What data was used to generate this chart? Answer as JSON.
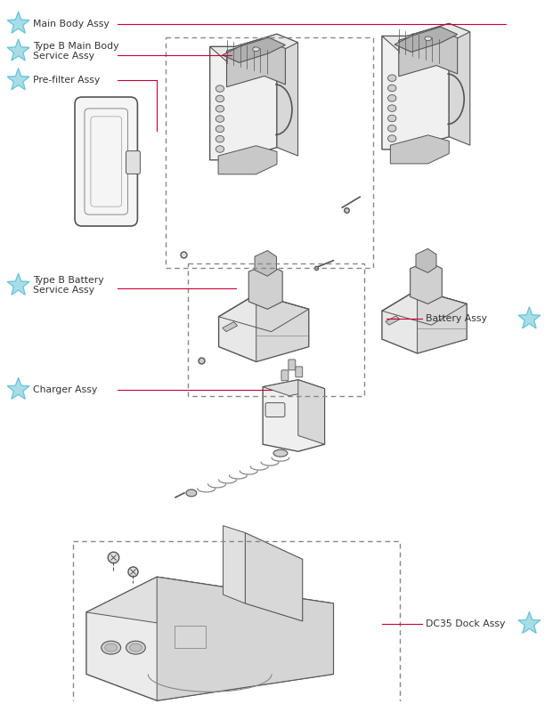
{
  "bg_color": "#ffffff",
  "line_color": "#cc0033",
  "star_outer": "#6ec6d8",
  "star_fill": "#a8dde8",
  "text_color": "#333333",
  "draw_color": "#555555",
  "draw_color_light": "#aaaaaa",
  "labels": {
    "main_body": "Main Body Assy",
    "type_b_main": "Type B Main Body\nService Assy",
    "pre_filter": "Pre-filter Assy",
    "type_b_battery": "Type B Battery\nService Assy",
    "battery": "Battery Assy",
    "charger": "Charger Assy",
    "dc35_dock": "DC35 Dock Assy"
  },
  "star_r": 0.021,
  "star_inner_ratio": 0.42,
  "fontsize": 7.8
}
